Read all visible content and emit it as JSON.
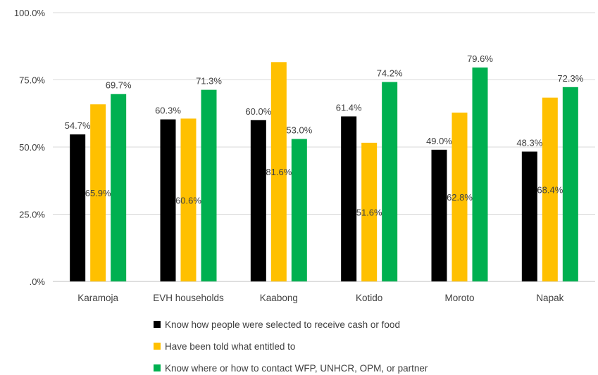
{
  "chart_data": {
    "type": "bar",
    "title": "",
    "xlabel": "",
    "ylabel": "",
    "ylim": [
      0,
      100
    ],
    "yticks": [
      0,
      25,
      50,
      75,
      100
    ],
    "ytick_labels": [
      ".0%",
      "25.0%",
      "50.0%",
      "75.0%",
      "100.0%"
    ],
    "grid": true,
    "legend_position": "bottom",
    "categories": [
      "Karamoja",
      "EVH households",
      "Kaabong",
      "Kotido",
      "Moroto",
      "Napak"
    ],
    "series": [
      {
        "name": "Know how people were selected to receive cash or food",
        "color": "#000000",
        "values": [
          54.7,
          60.3,
          60.0,
          61.4,
          49.0,
          48.3
        ],
        "labels": [
          "54.7%",
          "60.3%",
          "60.0%",
          "61.4%",
          "49.0%",
          "48.3%"
        ],
        "label_position": "outside_end"
      },
      {
        "name": "Have been told what entitled to",
        "color": "#FFC000",
        "values": [
          65.9,
          60.6,
          81.6,
          51.6,
          62.8,
          68.4
        ],
        "labels": [
          "65.9%",
          "60.6%",
          "81.6%",
          "51.6%",
          "62.8%",
          "68.4%"
        ],
        "label_position": "inside_middle"
      },
      {
        "name": "Know where or how to contact WFP, UNHCR, OPM, or partner",
        "color": "#00B050",
        "values": [
          69.7,
          71.3,
          53.0,
          74.2,
          79.6,
          72.3
        ],
        "labels": [
          "69.7%",
          "71.3%",
          "53.0%",
          "74.2%",
          "79.6%",
          "72.3%"
        ],
        "label_position": "outside_end"
      }
    ]
  }
}
